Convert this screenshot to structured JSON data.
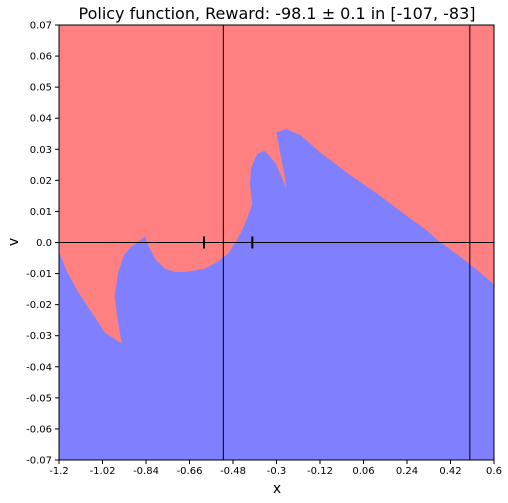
{
  "chart_data": {
    "type": "heatmap",
    "title": "Policy function, Reward: -98.1 ± 0.1 in [-107, -83]",
    "xlabel": "x",
    "ylabel": "v",
    "xlim": [
      -1.2,
      0.6
    ],
    "ylim": [
      -0.07,
      0.07
    ],
    "x_ticks": [
      -1.2,
      -1.02,
      -0.84,
      -0.66,
      -0.48,
      -0.3,
      -0.12,
      0.06,
      0.24,
      0.42,
      0.6
    ],
    "x_tick_labels": [
      "-1.2",
      "-1.02",
      "-0.84",
      "-0.66",
      "-0.48",
      "-0.3",
      "-0.12",
      "0.06",
      "0.24",
      "0.42",
      "0.6"
    ],
    "y_ticks": [
      0.07,
      0.06,
      0.05,
      0.04,
      0.03,
      0.02,
      0.01,
      0.0,
      -0.01,
      -0.02,
      -0.03,
      -0.04,
      -0.05,
      -0.06,
      -0.07
    ],
    "y_tick_labels": [
      "0.07",
      "0.06",
      "0.05",
      "0.04",
      "0.03",
      "0.02",
      "0.01",
      "0.0",
      "-0.01",
      "-0.02",
      "-0.03",
      "-0.04",
      "-0.05",
      "-0.06",
      "-0.07"
    ],
    "regions": [
      {
        "color": "#ff8080",
        "role": "background"
      },
      {
        "color": "#8080ff",
        "role": "boundary-region",
        "boundary": [
          [
            -1.2,
            -0.0029
          ],
          [
            -1.17,
            -0.009
          ],
          [
            -1.12,
            -0.016
          ],
          [
            -1.06,
            -0.023
          ],
          [
            -1.01,
            -0.029
          ],
          [
            -0.94,
            -0.0325
          ],
          [
            -0.955,
            -0.026
          ],
          [
            -0.97,
            -0.0175
          ],
          [
            -0.955,
            -0.0095
          ],
          [
            -0.93,
            -0.004
          ],
          [
            -0.905,
            -0.0015
          ],
          [
            -0.875,
            0.0
          ],
          [
            -0.845,
            0.002
          ],
          [
            -0.83,
            -0.001
          ],
          [
            -0.8,
            -0.0055
          ],
          [
            -0.76,
            -0.0085
          ],
          [
            -0.72,
            -0.0095
          ],
          [
            -0.68,
            -0.0095
          ],
          [
            -0.6,
            -0.0085
          ],
          [
            -0.55,
            -0.0065
          ],
          [
            -0.5,
            -0.0035
          ],
          [
            -0.47,
            0.0
          ],
          [
            -0.445,
            0.0035
          ],
          [
            -0.42,
            0.008
          ],
          [
            -0.4,
            0.0125
          ],
          [
            -0.41,
            0.019
          ],
          [
            -0.405,
            0.024
          ],
          [
            -0.38,
            0.0285
          ],
          [
            -0.35,
            0.0295
          ],
          [
            -0.33,
            0.028
          ],
          [
            -0.3,
            0.025
          ],
          [
            -0.26,
            0.0175
          ],
          [
            -0.265,
            0.021
          ],
          [
            -0.28,
            0.027
          ],
          [
            -0.29,
            0.031
          ],
          [
            -0.3,
            0.0355
          ],
          [
            -0.26,
            0.0365
          ],
          [
            -0.2,
            0.0345
          ],
          [
            -0.12,
            0.029
          ],
          [
            0.0,
            0.022
          ],
          [
            0.12,
            0.0155
          ],
          [
            0.24,
            0.0085
          ],
          [
            0.32,
            0.004
          ],
          [
            0.38,
            0.0
          ],
          [
            0.46,
            -0.0045
          ],
          [
            0.54,
            -0.0095
          ],
          [
            0.6,
            -0.0135
          ],
          [
            0.6,
            -0.07
          ],
          [
            -1.2,
            -0.07
          ]
        ]
      }
    ],
    "reference_lines": {
      "horizontal": [
        0.0
      ],
      "vertical": [
        -0.52,
        0.5
      ]
    },
    "point_markers": [
      {
        "x": -0.6,
        "y": 0.0
      },
      {
        "x": -0.4,
        "y": 0.0
      }
    ]
  }
}
